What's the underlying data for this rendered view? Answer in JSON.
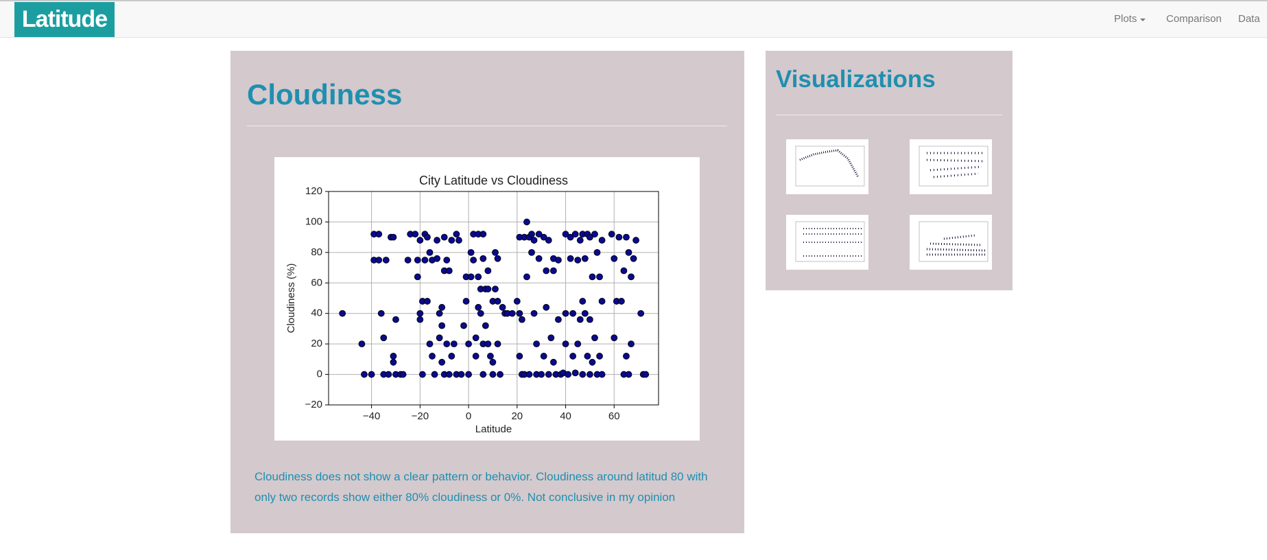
{
  "navbar": {
    "brand": "Latitude",
    "links": [
      "Plots",
      "Comparison",
      "Data"
    ]
  },
  "main": {
    "title": "Cloudiness",
    "description": "Cloudiness does not show a clear pattern or behavior. Cloudiness around latitud 80 with only two records show either 80% cloudiness or 0%. Not conclusive in my opinion"
  },
  "sidebar": {
    "title": "Visualizations"
  },
  "chart_data": {
    "type": "scatter",
    "title": "City Latitude vs Cloudiness",
    "x_label": "Latitude",
    "y_label": "Cloudiness (%)",
    "color": "#0a0a8c",
    "grid": true,
    "xlim": [
      -57.7,
      78.3
    ],
    "xticks": [
      {
        "value": -40,
        "label": "−40"
      },
      {
        "value": -20,
        "label": "−20"
      },
      0,
      20,
      40,
      60
    ],
    "ylim": [
      -20,
      120
    ],
    "yticks": [
      {
        "value": -20,
        "label": "−20"
      },
      0,
      20,
      40,
      60,
      80,
      100,
      120
    ],
    "x": [
      -52,
      -44,
      -43,
      -40,
      -39,
      -39,
      -37,
      -37,
      -36,
      -35,
      -35,
      -34,
      -33,
      -32,
      -31,
      -31,
      -31,
      -30,
      -30,
      -28,
      -27,
      -25,
      -24,
      -22,
      -21,
      -21,
      -20,
      -20,
      -20,
      -19,
      -19,
      -18,
      -18,
      -17,
      -17,
      -16,
      -16,
      -15,
      -15,
      -14,
      -13,
      -13,
      -12,
      -12,
      -11,
      -11,
      -11,
      -10,
      -10,
      -10,
      -9,
      -9,
      -8,
      -8,
      -7,
      -7,
      -6,
      -5,
      -5,
      -4,
      -3,
      -2,
      -1,
      -1,
      0,
      0,
      1,
      1,
      2,
      2,
      3,
      3,
      4,
      4,
      4,
      5,
      5,
      6,
      6,
      6,
      6,
      7,
      7,
      8,
      8,
      8,
      9,
      10,
      10,
      10,
      11,
      11,
      12,
      12,
      12,
      13,
      14,
      15,
      16,
      18,
      20,
      21,
      21,
      21,
      22,
      22,
      23,
      23,
      24,
      24,
      25,
      25,
      26,
      26,
      27,
      27,
      28,
      28,
      29,
      29,
      30,
      31,
      31,
      32,
      32,
      33,
      33,
      34,
      35,
      35,
      35,
      36,
      37,
      37,
      38,
      39,
      40,
      40,
      40,
      41,
      42,
      42,
      43,
      43,
      44,
      44,
      45,
      45,
      46,
      46,
      47,
      47,
      47,
      48,
      48,
      49,
      49,
      50,
      50,
      50,
      51,
      51,
      52,
      52,
      53,
      53,
      54,
      54,
      55,
      55,
      55,
      59,
      60,
      60,
      61,
      62,
      63,
      64,
      64,
      65,
      65,
      66,
      66,
      67,
      67,
      68,
      69,
      71,
      72,
      73
    ],
    "values": [
      40,
      20,
      0,
      0,
      92,
      75,
      92,
      75,
      40,
      24,
      0,
      75,
      0,
      90,
      90,
      12,
      8,
      36,
      0,
      0,
      0,
      75,
      92,
      92,
      64,
      75,
      88,
      40,
      36,
      0,
      48,
      75,
      92,
      90,
      48,
      80,
      20,
      75,
      12,
      0,
      88,
      76,
      40,
      24,
      44,
      32,
      8,
      90,
      68,
      0,
      75,
      20,
      68,
      0,
      88,
      12,
      20,
      92,
      0,
      88,
      0,
      32,
      48,
      64,
      20,
      0,
      64,
      80,
      92,
      75,
      24,
      12,
      92,
      64,
      44,
      56,
      40,
      92,
      76,
      20,
      0,
      56,
      32,
      68,
      56,
      20,
      12,
      48,
      8,
      0,
      56,
      80,
      48,
      76,
      20,
      0,
      44,
      40,
      40,
      40,
      48,
      90,
      40,
      12,
      0,
      36,
      90,
      0,
      100,
      64,
      90,
      0,
      92,
      80,
      88,
      40,
      20,
      0,
      92,
      76,
      0,
      90,
      12,
      44,
      68,
      88,
      0,
      24,
      76,
      68,
      8,
      0,
      75,
      36,
      0,
      1,
      92,
      40,
      20,
      0,
      90,
      76,
      40,
      12,
      92,
      1,
      75,
      20,
      88,
      36,
      92,
      48,
      0,
      76,
      40,
      92,
      12,
      90,
      36,
      0,
      8,
      64,
      92,
      24,
      80,
      0,
      64,
      12,
      88,
      48,
      0,
      92,
      76,
      24,
      48,
      90,
      48,
      68,
      0,
      90,
      12,
      80,
      0,
      20,
      64,
      76,
      88,
      40,
      0,
      0
    ]
  }
}
